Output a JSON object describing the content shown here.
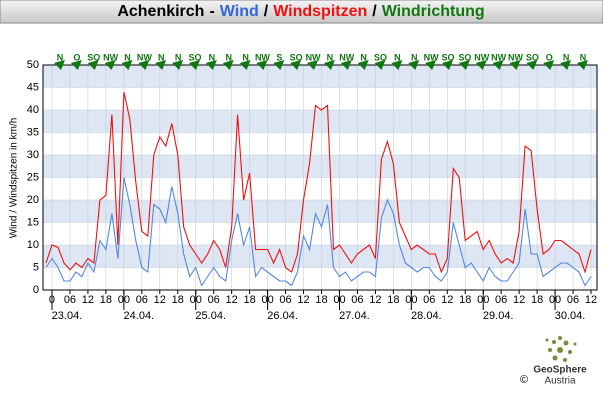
{
  "chart_data": {
    "type": "line",
    "title_parts": [
      {
        "text": "Achenkirch",
        "color": "#000000"
      },
      {
        "text": "-",
        "color": "#000000"
      },
      {
        "text": "Wind",
        "color": "#3366dd"
      },
      {
        "text": "/",
        "color": "#000000"
      },
      {
        "text": "Windspitzen",
        "color": "#ee1111"
      },
      {
        "text": "/",
        "color": "#000000"
      },
      {
        "text": "Windrichtung",
        "color": "#117711"
      }
    ],
    "y_label": "Wind / Windspitzen in km/h",
    "directions": [
      "N",
      "O",
      "SO",
      "NW",
      "N",
      "NW",
      "N",
      "N",
      "SO",
      "N",
      "N",
      "N",
      "NW",
      "S",
      "SO",
      "NW",
      "N",
      "NW",
      "N",
      "SO",
      "N",
      "N",
      "NW",
      "SO",
      "SO",
      "NW",
      "NW",
      "NW",
      "SO",
      "O",
      "N",
      "N"
    ],
    "direction_color": "#117711",
    "x": [
      -2,
      0,
      2,
      4,
      6,
      8,
      10,
      12,
      14,
      16,
      18,
      20,
      22,
      24,
      26,
      28,
      30,
      32,
      34,
      36,
      38,
      40,
      42,
      44,
      46,
      48,
      50,
      52,
      54,
      56,
      58,
      60,
      62,
      64,
      66,
      68,
      70,
      72,
      74,
      76,
      78,
      80,
      82,
      84,
      86,
      88,
      90,
      92,
      94,
      96,
      98,
      100,
      102,
      104,
      106,
      108,
      110,
      112,
      114,
      116,
      118,
      120,
      122,
      124,
      126,
      128,
      130,
      132,
      134,
      136,
      138,
      140,
      142,
      144,
      146,
      148,
      150,
      152,
      154,
      156,
      158,
      160,
      162,
      164,
      166,
      168,
      170,
      172,
      174,
      176,
      178,
      180
    ],
    "series": [
      {
        "name": "Windspitzen",
        "color": "#ee1111",
        "values": [
          6,
          10,
          9.5,
          6,
          4.5,
          6,
          5,
          7,
          6,
          20,
          21,
          39,
          10,
          44,
          38,
          24,
          13,
          12,
          30,
          34,
          32,
          37,
          30,
          14,
          10,
          8,
          6,
          8,
          11,
          9,
          5,
          14,
          39,
          20,
          26,
          9,
          9,
          9,
          6,
          9,
          5,
          4,
          8,
          20,
          28,
          41,
          40,
          41,
          9,
          10,
          8,
          6,
          8,
          9,
          10,
          7,
          29,
          33,
          28,
          15,
          12,
          9,
          10,
          9,
          8,
          8,
          4,
          7,
          27,
          25,
          11,
          12,
          13,
          9,
          11,
          8,
          6,
          7,
          6,
          13,
          32,
          31,
          18,
          8,
          9,
          11,
          11,
          10,
          9,
          8,
          4,
          9
        ]
      },
      {
        "name": "Wind",
        "color": "#5588dd",
        "values": [
          5,
          7,
          5,
          2,
          2,
          4,
          3,
          6,
          4,
          11,
          9,
          17,
          7,
          25,
          19,
          11,
          5,
          4,
          19,
          18,
          15,
          23,
          17,
          8,
          3,
          5,
          1,
          3,
          5,
          3,
          2,
          11,
          17,
          10,
          14,
          3,
          5,
          4,
          3,
          2,
          2,
          1,
          4,
          12,
          9,
          17,
          14,
          19,
          5,
          3,
          4,
          2,
          3,
          4,
          4,
          3,
          16,
          20,
          17,
          10,
          6,
          5,
          4,
          5,
          5,
          3,
          2,
          4,
          15,
          10,
          5,
          6,
          4,
          2,
          5,
          3,
          2,
          2,
          4,
          6,
          18,
          8,
          8,
          3,
          4,
          5,
          6,
          6,
          5,
          4,
          1,
          3
        ]
      }
    ],
    "xlim": [
      -3,
      182
    ],
    "xticks": [
      0,
      {
        "value": 6,
        "label": "06"
      },
      {
        "value": 12,
        "label": "12"
      },
      {
        "value": 18,
        "label": "18"
      },
      {
        "value": 24,
        "label": "00"
      },
      {
        "value": 30,
        "label": "06"
      },
      {
        "value": 36,
        "label": "12"
      },
      {
        "value": 42,
        "label": "18"
      },
      {
        "value": 48,
        "label": "00"
      },
      {
        "value": 54,
        "label": "06"
      },
      {
        "value": 60,
        "label": "12"
      },
      {
        "value": 66,
        "label": "18"
      },
      {
        "value": 72,
        "label": "00"
      },
      {
        "value": 78,
        "label": "06"
      },
      {
        "value": 84,
        "label": "12"
      },
      {
        "value": 90,
        "label": "18"
      },
      {
        "value": 96,
        "label": "00"
      },
      {
        "value": 102,
        "label": "06"
      },
      {
        "value": 108,
        "label": "12"
      },
      {
        "value": 114,
        "label": "18"
      },
      {
        "value": 120,
        "label": "00"
      },
      {
        "value": 126,
        "label": "06"
      },
      {
        "value": 132,
        "label": "12"
      },
      {
        "value": 138,
        "label": "18"
      },
      {
        "value": 144,
        "label": "00"
      },
      {
        "value": 150,
        "label": "06"
      },
      {
        "value": 156,
        "label": "12"
      },
      {
        "value": 162,
        "label": "18"
      },
      {
        "value": 168,
        "label": "00"
      },
      {
        "value": 174,
        "label": "06"
      },
      {
        "value": 180,
        "label": "12"
      }
    ],
    "date_labels": [
      {
        "value": 0,
        "label": "23.04."
      },
      {
        "value": 24,
        "label": "24.04."
      },
      {
        "value": 48,
        "label": "25.04."
      },
      {
        "value": 72,
        "label": "26.04."
      },
      {
        "value": 96,
        "label": "27.04."
      },
      {
        "value": 120,
        "label": "28.04."
      },
      {
        "value": 144,
        "label": "29.04."
      },
      {
        "value": 168,
        "label": "30.04."
      }
    ],
    "ylim": [
      0,
      50
    ],
    "yticks": [
      0,
      5,
      10,
      15,
      20,
      25,
      30,
      35,
      40,
      45,
      50
    ],
    "grid": true,
    "band_color": "#dde6f2",
    "logo": {
      "name": "GeoSphere",
      "sub": "Austria",
      "copyright": "©"
    }
  }
}
